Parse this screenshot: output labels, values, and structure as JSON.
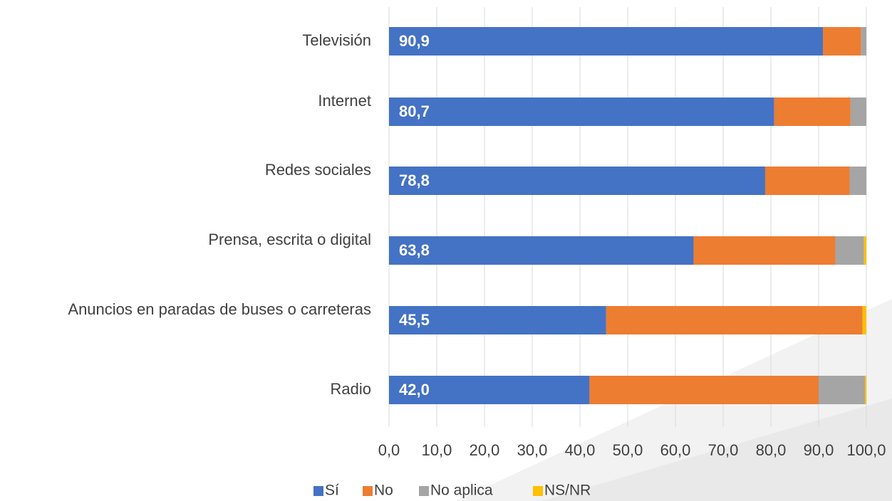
{
  "chart_data": {
    "type": "stacked_bar_horizontal",
    "categories": [
      "Televisión",
      "Internet",
      "Redes sociales",
      "Prensa, escrita o digital",
      "Anuncios en paradas de buses o carreteras",
      "Radio"
    ],
    "series": [
      {
        "name": "Sí",
        "color": "#4472c4",
        "values": [
          90.9,
          80.7,
          78.8,
          63.8,
          45.5,
          42.0
        ],
        "value_labels": [
          "90,9",
          "80,7",
          "78,8",
          "63,8",
          "45,5",
          "42,0"
        ]
      },
      {
        "name": "No",
        "color": "#ed7d31",
        "values": [
          8.0,
          16.0,
          17.7,
          29.7,
          53.7,
          48.0
        ]
      },
      {
        "name": "No aplica",
        "color": "#a5a5a5",
        "values": [
          1.1,
          3.3,
          3.5,
          6.0,
          0,
          9.7
        ]
      },
      {
        "name": "NS/NR",
        "color": "#ffc000",
        "values": [
          0,
          0,
          0,
          0.5,
          0.8,
          0.3
        ]
      }
    ],
    "xlim": [
      0,
      100
    ],
    "xticks": [
      {
        "value": 0,
        "label": "0,0"
      },
      {
        "value": 10,
        "label": "10,0"
      },
      {
        "value": 20,
        "label": "20,0"
      },
      {
        "value": 30,
        "label": "30,0"
      },
      {
        "value": 40,
        "label": "40,0"
      },
      {
        "value": 50,
        "label": "50,0"
      },
      {
        "value": 60,
        "label": "60,0"
      },
      {
        "value": 70,
        "label": "70,0"
      },
      {
        "value": 80,
        "label": "80,0"
      },
      {
        "value": 90,
        "label": "90,0"
      },
      {
        "value": 100,
        "label": "100,0"
      }
    ],
    "grid": true,
    "legend": "bottom"
  }
}
